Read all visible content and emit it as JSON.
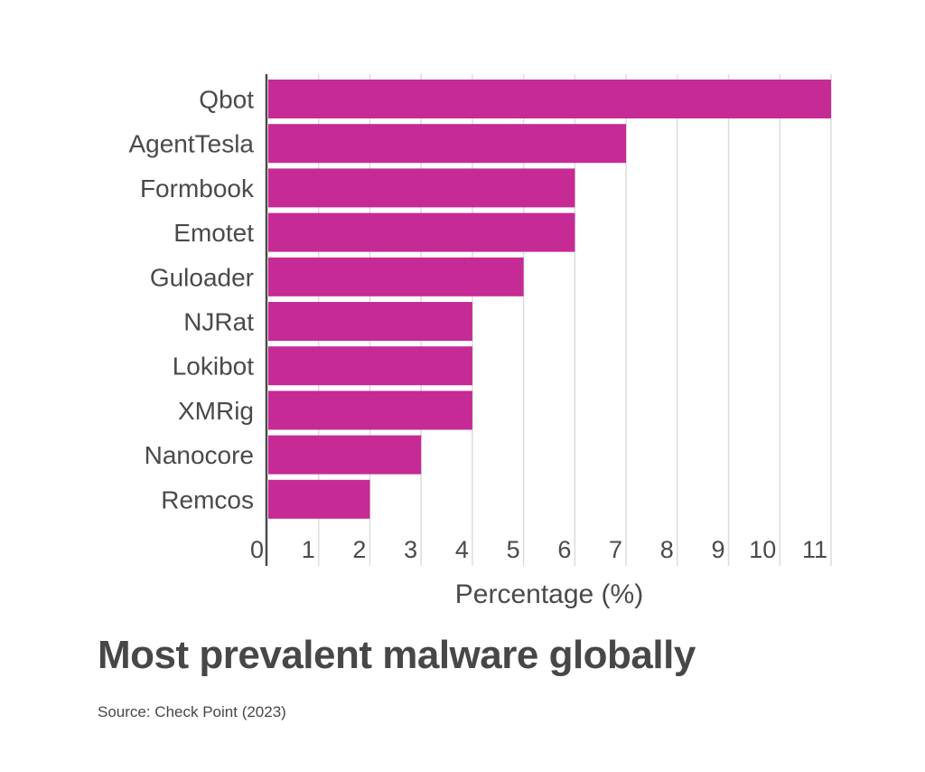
{
  "chart_data": {
    "type": "bar",
    "orientation": "horizontal",
    "title": "Most prevalent malware globally",
    "subtitle": "Source: Check Point (2023)",
    "xlabel": "Percentage (%)",
    "ylabel": "",
    "categories": [
      "Qbot",
      "AgentTesla",
      "Formbook",
      "Emotet",
      "Guloader",
      "NJRat",
      "Lokibot",
      "XMRig",
      "Nanocore",
      "Remcos"
    ],
    "values": [
      11,
      7,
      6,
      6,
      5,
      4,
      4,
      4,
      3,
      2
    ],
    "xlim": [
      0,
      11
    ],
    "xticks": [
      "0",
      "1",
      "2",
      "3",
      "4",
      "5",
      "6",
      "7",
      "8",
      "9",
      "10",
      "11"
    ],
    "grid": true,
    "bar_color": "#c62a94"
  }
}
